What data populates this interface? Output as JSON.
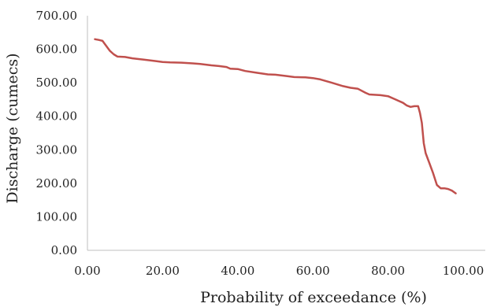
{
  "chart_data": {
    "type": "line",
    "title": "",
    "xlabel": "Probability of exceedance (%)",
    "ylabel": "Discharge (cumecs)",
    "xlim": [
      0,
      100
    ],
    "ylim": [
      0,
      700
    ],
    "grid": false,
    "legend": "none",
    "x_ticks": [
      "0.00",
      "20.00",
      "40.00",
      "60.00",
      "80.00",
      "100.00"
    ],
    "y_ticks": [
      "0.00",
      "100.00",
      "200.00",
      "300.00",
      "400.00",
      "500.00",
      "600.00",
      "700.00"
    ],
    "series": [
      {
        "color": "#c0504d",
        "x": [
          2,
          3,
          4,
          5,
          6,
          7,
          8,
          10,
          12,
          15,
          18,
          20,
          22,
          25,
          28,
          30,
          33,
          35,
          37,
          38,
          40,
          42,
          45,
          48,
          50,
          53,
          55,
          58,
          60,
          62,
          65,
          68,
          70,
          72,
          74,
          75,
          78,
          80,
          82,
          84,
          85,
          86,
          87,
          88,
          88.5,
          89,
          89.5,
          90,
          91,
          92,
          93,
          94,
          95,
          96,
          97,
          98
        ],
        "y": [
          630,
          628,
          625,
          610,
          595,
          585,
          578,
          577,
          573,
          569,
          565,
          562,
          561,
          560,
          558,
          556,
          552,
          550,
          547,
          542,
          541,
          535,
          530,
          525,
          524,
          520,
          517,
          516,
          514,
          510,
          500,
          490,
          485,
          482,
          470,
          465,
          463,
          460,
          450,
          440,
          432,
          428,
          430,
          430,
          410,
          380,
          320,
          290,
          260,
          230,
          195,
          185,
          185,
          183,
          178,
          170
        ]
      }
    ]
  }
}
